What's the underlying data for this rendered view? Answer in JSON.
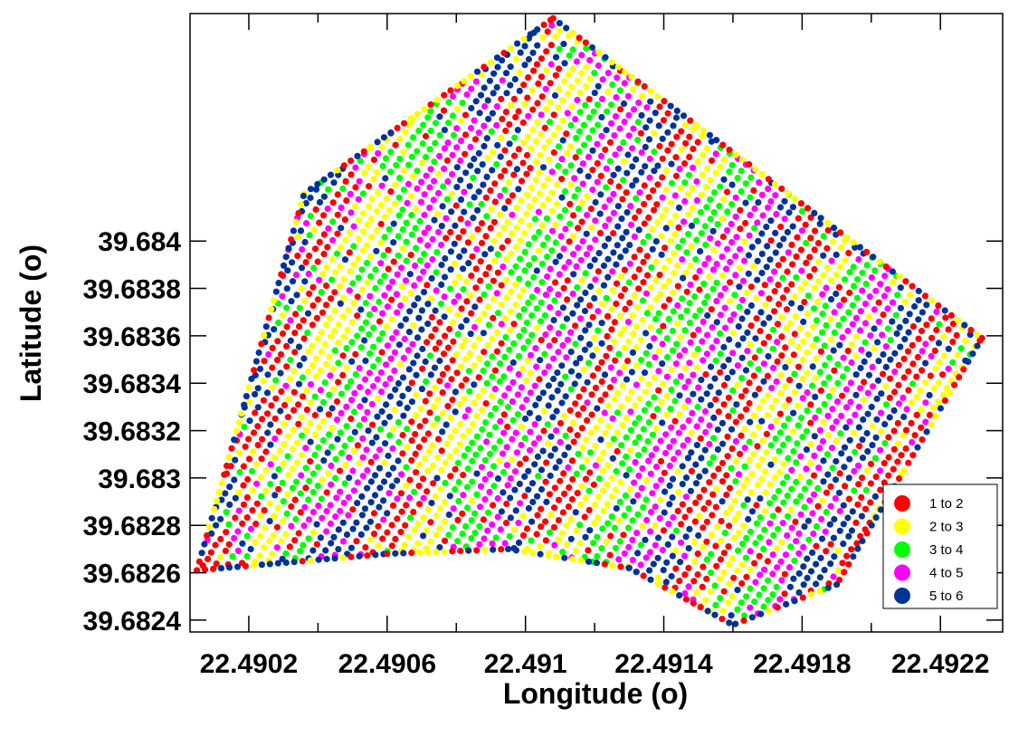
{
  "chart_data": {
    "type": "scatter",
    "xlabel": "Longitude (o)",
    "ylabel": "Latitude (o)",
    "xlim": [
      22.49003,
      22.49238
    ],
    "ylim": [
      39.68235,
      39.68496
    ],
    "grid": false,
    "legend_position": "bottom-right",
    "x_ticks": [
      {
        "value": 22.4902,
        "label": "22.4902"
      },
      {
        "value": 22.4906,
        "label": "22.4906"
      },
      {
        "value": 22.491,
        "label": "22.491"
      },
      {
        "value": 22.4914,
        "label": "22.4914"
      },
      {
        "value": 22.4918,
        "label": "22.4918"
      },
      {
        "value": 22.4922,
        "label": "22.4922"
      }
    ],
    "x_minor_ticks": [
      22.4904,
      22.4908,
      22.4912,
      22.4916,
      22.492
    ],
    "y_ticks": [
      {
        "value": 39.6824,
        "label": "39.6824"
      },
      {
        "value": 39.6826,
        "label": "39.6826"
      },
      {
        "value": 39.6828,
        "label": "39.6828"
      },
      {
        "value": 39.683,
        "label": "39.683"
      },
      {
        "value": 39.6832,
        "label": "39.6832"
      },
      {
        "value": 39.6834,
        "label": "39.6834"
      },
      {
        "value": 39.6836,
        "label": "39.6836"
      },
      {
        "value": 39.6838,
        "label": "39.6838"
      },
      {
        "value": 39.684,
        "label": "39.684"
      }
    ],
    "series": [
      {
        "name": "1 to 2",
        "color": "#ff0000"
      },
      {
        "name": "2 to 3",
        "color": "#ffff00"
      },
      {
        "name": "3 to 4",
        "color": "#00ff00"
      },
      {
        "name": "4 to 5",
        "color": "#ff00ff"
      },
      {
        "name": "5 to 6",
        "color": "#003399"
      }
    ],
    "boundary": {
      "top_edge": [
        [
          22.49036,
          39.6842
        ],
        [
          22.49108,
          39.68494
        ],
        [
          22.49232,
          39.68359
        ]
      ],
      "right_edge": [
        [
          22.49232,
          39.68359
        ],
        [
          22.4919,
          39.68255
        ],
        [
          22.4916,
          39.68238
        ]
      ],
      "left_edge": [
        [
          22.49005,
          39.68261
        ],
        [
          22.49036,
          39.6842
        ]
      ],
      "bottom_curve": [
        [
          22.49005,
          39.68261
        ],
        [
          22.4906,
          39.68268
        ],
        [
          22.49095,
          39.6827
        ],
        [
          22.4913,
          39.68262
        ],
        [
          22.4916,
          39.68238
        ]
      ]
    }
  }
}
